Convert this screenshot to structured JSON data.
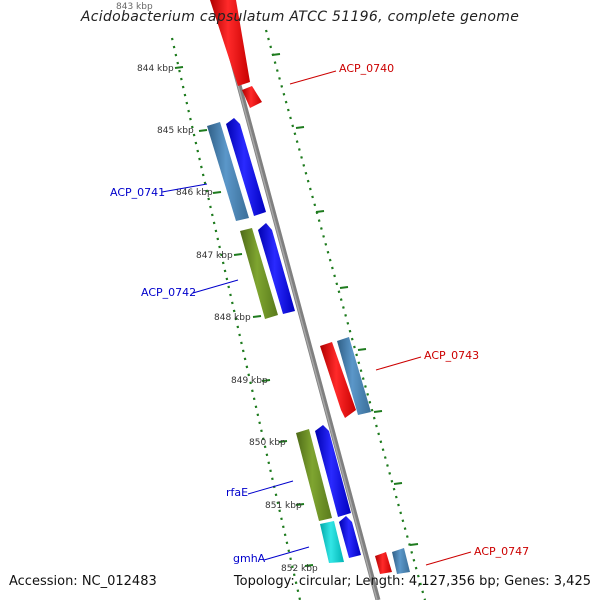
{
  "title": "Acidobacterium capsulatum ATCC 51196, complete genome",
  "footer": {
    "accession": "Accession: NC_012483",
    "summary": "Topology: circular; Length: 4,127,356 bp; Genes: 3,425"
  },
  "colors": {
    "backbone": "#808080",
    "tick": "#1e7b1e",
    "red_label": "#cc0000",
    "blue_label": "#0000cc",
    "red_gene": "#ff0000",
    "blue_gene": "#0000ff",
    "steel_gene": "#4682b4",
    "olive_gene": "#6b8e23",
    "cyan_gene": "#00cccc"
  },
  "kbp_labels": [
    "843 kbp",
    "844 kbp",
    "845 kbp",
    "846 kbp",
    "847 kbp",
    "848 kbp",
    "849 kbp",
    "850 kbp",
    "851 kbp",
    "852 kbp"
  ],
  "gene_labels": [
    {
      "text": "ACP_0740",
      "color": "red"
    },
    {
      "text": "ACP_0741",
      "color": "blue"
    },
    {
      "text": "ACP_0742",
      "color": "blue"
    },
    {
      "text": "ACP_0743",
      "color": "red"
    },
    {
      "text": "rfaE",
      "color": "blue"
    },
    {
      "text": "gmhA",
      "color": "blue"
    },
    {
      "text": "ACP_0747",
      "color": "red"
    }
  ]
}
